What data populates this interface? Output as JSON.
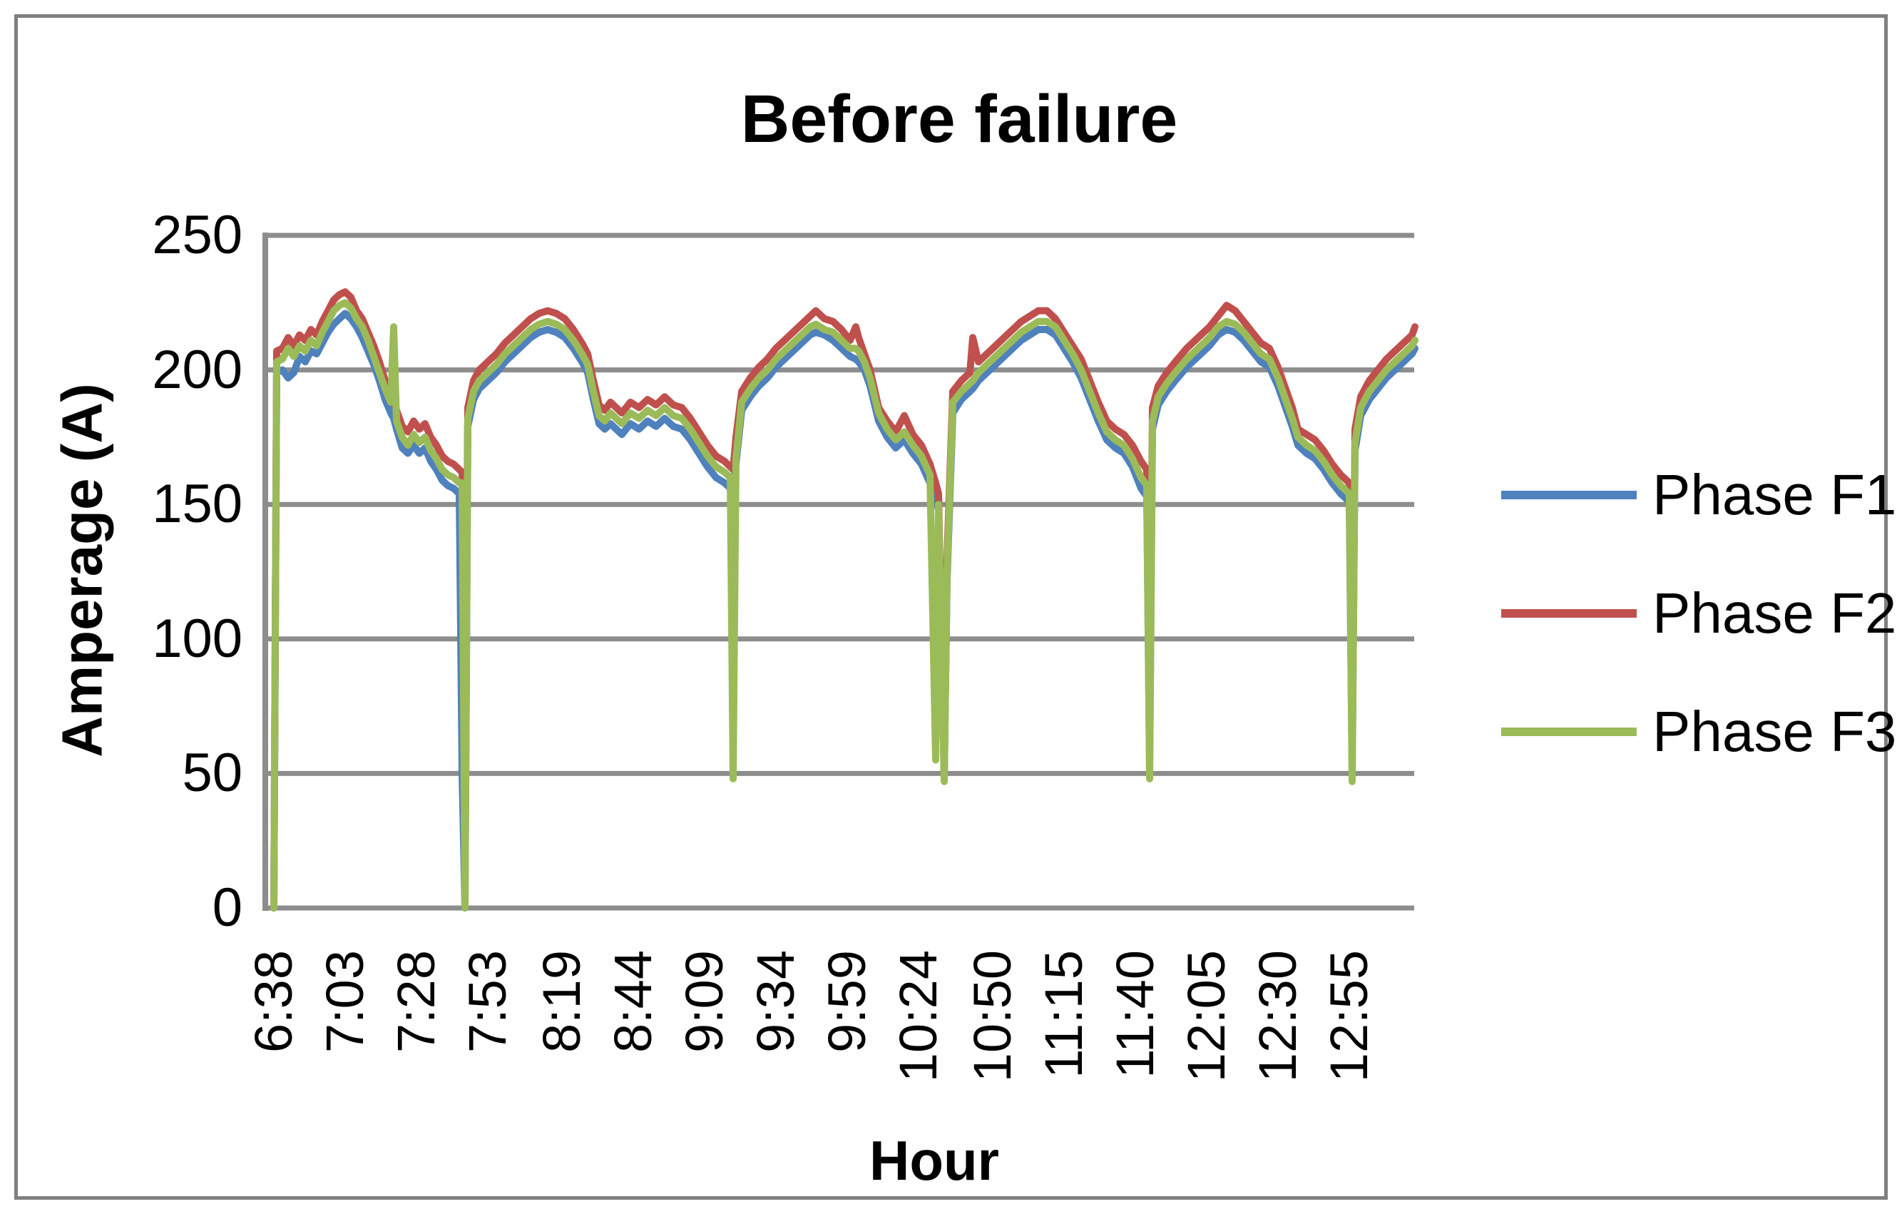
{
  "figure": {
    "title": "Before failure"
  },
  "chart_data": {
    "type": "line",
    "title": "Before failure",
    "xlabel": "Hour",
    "ylabel": "Amperage (A)",
    "ylim": [
      0,
      250
    ],
    "yticks": [
      0,
      50,
      100,
      150,
      200,
      250
    ],
    "grid": true,
    "legend_position": "right",
    "axis_color": "#8d8d8d",
    "grid_color": "#8d8d8d",
    "x_unit": "minutes after 6:38",
    "xticks": [
      {
        "label": "6:38",
        "minute": 0
      },
      {
        "label": "7:03",
        "minute": 25
      },
      {
        "label": "7:28",
        "minute": 50
      },
      {
        "label": "7:53",
        "minute": 75
      },
      {
        "label": "8:19",
        "minute": 101
      },
      {
        "label": "8:44",
        "minute": 126
      },
      {
        "label": "9:09",
        "minute": 151
      },
      {
        "label": "9:34",
        "minute": 176
      },
      {
        "label": "9:59",
        "minute": 201
      },
      {
        "label": "10:24",
        "minute": 226
      },
      {
        "label": "10:50",
        "minute": 252
      },
      {
        "label": "11:15",
        "minute": 277
      },
      {
        "label": "11:40",
        "minute": 302
      },
      {
        "label": "12:05",
        "minute": 327
      },
      {
        "label": "12:30",
        "minute": 352
      },
      {
        "label": "12:55",
        "minute": 377
      }
    ],
    "x_minutes": [
      0,
      1,
      3,
      5,
      7,
      9,
      11,
      13,
      15,
      17,
      19,
      21,
      23,
      25,
      27,
      29,
      31,
      33,
      35,
      37,
      39,
      41,
      42,
      43,
      45,
      47,
      49,
      51,
      53,
      55,
      57,
      59,
      61,
      63,
      65,
      66,
      67,
      68,
      70,
      72,
      75,
      78,
      81,
      84,
      87,
      90,
      93,
      96,
      99,
      102,
      105,
      108,
      110,
      112,
      114,
      116,
      118,
      120,
      122,
      125,
      128,
      131,
      134,
      137,
      140,
      143,
      146,
      149,
      152,
      155,
      158,
      160,
      161,
      162,
      164,
      167,
      170,
      173,
      176,
      179,
      182,
      185,
      188,
      190,
      193,
      196,
      199,
      202,
      204,
      205,
      207,
      209,
      212,
      215,
      218,
      221,
      224,
      227,
      230,
      232,
      233,
      235,
      236,
      238,
      241,
      244,
      245,
      247,
      250,
      253,
      256,
      259,
      262,
      265,
      268,
      271,
      274,
      277,
      280,
      283,
      286,
      289,
      292,
      295,
      298,
      301,
      304,
      306,
      307,
      308,
      310,
      313,
      316,
      320,
      324,
      328,
      331,
      334,
      337,
      340,
      343,
      346,
      349,
      352,
      355,
      357,
      359,
      362,
      365,
      368,
      371,
      374,
      377,
      378,
      379,
      381,
      384,
      387,
      390,
      393,
      396,
      399,
      400
    ],
    "series": [
      {
        "name": "Phase F1",
        "color": "#4f81bd",
        "values": [
          0,
          199,
          200,
          197,
          199,
          205,
          203,
          207,
          206,
          210,
          214,
          217,
          219,
          221,
          219,
          216,
          212,
          207,
          202,
          196,
          189,
          184,
          182,
          178,
          171,
          169,
          172,
          169,
          171,
          166,
          163,
          159,
          157,
          156,
          154,
          50,
          0,
          179,
          189,
          193,
          196,
          199,
          203,
          206,
          209,
          212,
          214,
          215,
          214,
          212,
          208,
          203,
          199,
          189,
          180,
          178,
          180,
          178,
          176,
          180,
          178,
          181,
          179,
          182,
          179,
          178,
          174,
          169,
          164,
          160,
          158,
          156,
          156,
          165,
          185,
          190,
          194,
          197,
          201,
          204,
          207,
          210,
          213,
          214,
          213,
          211,
          208,
          205,
          204,
          203,
          200,
          194,
          181,
          175,
          171,
          174,
          169,
          165,
          158,
          152,
          148,
          50,
          122,
          184,
          189,
          192,
          193,
          196,
          199,
          202,
          205,
          208,
          211,
          213,
          215,
          215,
          213,
          208,
          203,
          197,
          189,
          181,
          174,
          171,
          169,
          164,
          156,
          153,
          52,
          178,
          187,
          192,
          196,
          201,
          205,
          209,
          213,
          215,
          214,
          211,
          207,
          203,
          201,
          194,
          185,
          179,
          172,
          169,
          167,
          163,
          158,
          154,
          151,
          50,
          170,
          183,
          189,
          193,
          197,
          200,
          203,
          206,
          208
        ]
      },
      {
        "name": "Phase F2",
        "color": "#c0504d",
        "values": [
          0,
          207,
          208,
          212,
          209,
          213,
          211,
          215,
          213,
          218,
          222,
          226,
          228,
          229,
          227,
          222,
          219,
          214,
          209,
          203,
          196,
          191,
          189,
          185,
          179,
          177,
          181,
          178,
          180,
          175,
          172,
          168,
          166,
          165,
          163,
          162,
          50,
          186,
          196,
          200,
          203,
          206,
          210,
          213,
          216,
          219,
          221,
          222,
          221,
          219,
          215,
          210,
          206,
          196,
          187,
          185,
          188,
          186,
          184,
          188,
          186,
          189,
          187,
          190,
          187,
          186,
          182,
          177,
          172,
          168,
          166,
          164,
          163,
          175,
          192,
          197,
          201,
          204,
          208,
          211,
          214,
          217,
          220,
          222,
          219,
          218,
          215,
          211,
          216,
          212,
          206,
          200,
          186,
          181,
          177,
          183,
          176,
          172,
          165,
          158,
          154,
          48,
          130,
          192,
          196,
          199,
          212,
          203,
          206,
          209,
          212,
          215,
          218,
          220,
          222,
          222,
          219,
          214,
          209,
          204,
          196,
          188,
          181,
          178,
          176,
          172,
          166,
          163,
          70,
          186,
          194,
          199,
          203,
          208,
          212,
          216,
          220,
          224,
          222,
          218,
          214,
          210,
          208,
          201,
          192,
          186,
          178,
          176,
          174,
          170,
          165,
          161,
          158,
          58,
          178,
          190,
          196,
          200,
          204,
          207,
          210,
          213,
          216
        ]
      },
      {
        "name": "Phase F3",
        "color": "#9bbb59",
        "values": [
          0,
          203,
          204,
          208,
          205,
          209,
          207,
          211,
          209,
          214,
          218,
          222,
          224,
          225,
          223,
          219,
          216,
          211,
          205,
          199,
          193,
          188,
          216,
          181,
          175,
          172,
          176,
          173,
          175,
          170,
          167,
          163,
          161,
          160,
          158,
          158,
          0,
          182,
          192,
          196,
          199,
          202,
          206,
          209,
          212,
          215,
          217,
          218,
          217,
          215,
          211,
          206,
          202,
          192,
          183,
          181,
          184,
          182,
          180,
          184,
          182,
          185,
          183,
          186,
          183,
          182,
          178,
          173,
          168,
          164,
          162,
          160,
          48,
          167,
          188,
          193,
          197,
          200,
          204,
          207,
          210,
          213,
          216,
          217,
          215,
          214,
          211,
          208,
          208,
          207,
          203,
          197,
          184,
          178,
          174,
          177,
          172,
          168,
          161,
          55,
          150,
          47,
          125,
          188,
          192,
          195,
          196,
          199,
          202,
          205,
          208,
          211,
          214,
          216,
          218,
          218,
          216,
          211,
          206,
          200,
          192,
          184,
          177,
          174,
          172,
          167,
          160,
          157,
          48,
          181,
          190,
          195,
          199,
          204,
          208,
          212,
          216,
          218,
          217,
          214,
          210,
          206,
          204,
          197,
          188,
          182,
          175,
          172,
          170,
          166,
          161,
          157,
          154,
          47,
          173,
          186,
          192,
          196,
          200,
          203,
          206,
          209,
          211
        ]
      }
    ]
  }
}
